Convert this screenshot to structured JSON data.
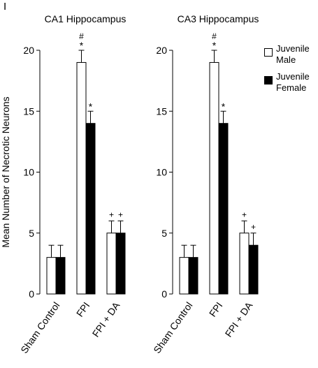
{
  "panel_label": "I",
  "legend": [
    {
      "label": "Juvenile Male",
      "fill": "#ffffff"
    },
    {
      "label": "Juvenile Female",
      "fill": "#000000"
    }
  ],
  "chart_data": [
    {
      "type": "bar",
      "title": "CA1 Hippocampus",
      "ylabel": "Mean Number of Necrotic Neurons",
      "xlabel": "",
      "categories": [
        "Sham Control",
        "FPI",
        "FPI + DA"
      ],
      "ylim": [
        0,
        20
      ],
      "yticks": [
        0,
        5,
        10,
        15,
        20
      ],
      "series": [
        {
          "name": "Juvenile Male",
          "fill": "#ffffff",
          "values": [
            3,
            19,
            5
          ],
          "errors": [
            1,
            1,
            1
          ],
          "annotations": [
            [],
            [
              "#",
              "*"
            ],
            [
              "+"
            ]
          ]
        },
        {
          "name": "Juvenile Female",
          "fill": "#000000",
          "values": [
            3,
            14,
            5
          ],
          "errors": [
            1,
            1,
            1
          ],
          "annotations": [
            [],
            [
              "*"
            ],
            [
              "+"
            ]
          ]
        }
      ]
    },
    {
      "type": "bar",
      "title": "CA3 Hippocampus",
      "ylabel": "",
      "xlabel": "",
      "categories": [
        "Sham Control",
        "FPI",
        "FPI + DA"
      ],
      "ylim": [
        0,
        20
      ],
      "yticks": [
        0,
        5,
        10,
        15,
        20
      ],
      "series": [
        {
          "name": "Juvenile Male",
          "fill": "#ffffff",
          "values": [
            3,
            19,
            5
          ],
          "errors": [
            1,
            1,
            1
          ],
          "annotations": [
            [],
            [
              "#",
              "*"
            ],
            [
              "+"
            ]
          ]
        },
        {
          "name": "Juvenile Female",
          "fill": "#000000",
          "values": [
            3,
            14,
            4
          ],
          "errors": [
            1,
            1,
            1
          ],
          "annotations": [
            [],
            [
              "*"
            ],
            [
              "+"
            ]
          ]
        }
      ]
    }
  ]
}
